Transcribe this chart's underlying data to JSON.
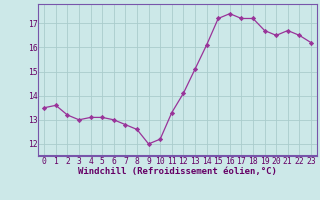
{
  "x": [
    0,
    1,
    2,
    3,
    4,
    5,
    6,
    7,
    8,
    9,
    10,
    11,
    12,
    13,
    14,
    15,
    16,
    17,
    18,
    19,
    20,
    21,
    22,
    23
  ],
  "y": [
    13.5,
    13.6,
    13.2,
    13.0,
    13.1,
    13.1,
    13.0,
    12.8,
    12.6,
    12.0,
    12.2,
    13.3,
    14.1,
    15.1,
    16.1,
    17.2,
    17.4,
    17.2,
    17.2,
    16.7,
    16.5,
    16.7,
    16.5,
    16.2
  ],
  "line_color": "#993399",
  "marker": "D",
  "marker_size": 2.2,
  "bg_color": "#cce8e8",
  "grid_color": "#aacccc",
  "xlabel": "Windchill (Refroidissement éolien,°C)",
  "xlabel_color": "#660066",
  "xlabel_fontsize": 6.5,
  "yticks": [
    12,
    13,
    14,
    15,
    16,
    17
  ],
  "ylim": [
    11.5,
    17.8
  ],
  "xlim": [
    -0.5,
    23.5
  ],
  "tick_color": "#660066",
  "tick_fontsize": 5.8,
  "tick_fontfamily": "monospace",
  "spine_color": "#7755aa"
}
